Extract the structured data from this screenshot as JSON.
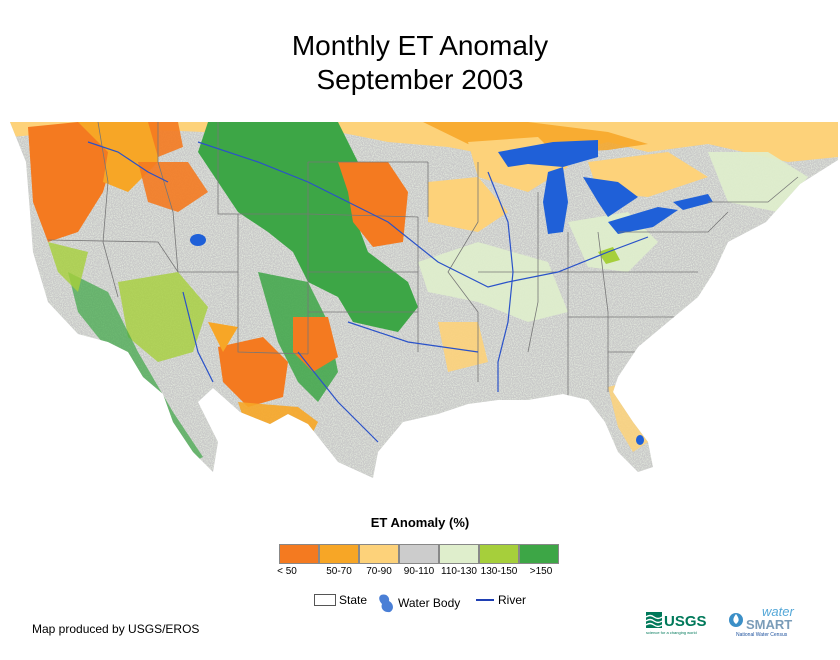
{
  "title": {
    "line1": "Monthly ET Anomaly",
    "line2": "September 2003"
  },
  "map": {
    "region": "conterminous-us",
    "water_color": "#1f60d8",
    "river_color": "#2a52c9",
    "land_base_color": "#c8c8c8"
  },
  "legend": {
    "title": "ET Anomaly (%)",
    "classes": [
      {
        "label": "< 50",
        "color": "#f47a20"
      },
      {
        "label": "50-70",
        "color": "#f7a626"
      },
      {
        "label": "70-90",
        "color": "#fdd27a"
      },
      {
        "label": "90-110",
        "color": "#cccccc"
      },
      {
        "label": "110-130",
        "color": "#dfeecc"
      },
      {
        "label": "130-150",
        "color": "#a6cf3b"
      },
      {
        "label": ">150",
        "color": "#3da646"
      }
    ],
    "keys": {
      "state": "State",
      "water_body": "Water Body",
      "river": "River"
    }
  },
  "credit": "Map produced by USGS/EROS",
  "logos": {
    "usgs": {
      "name": "USGS",
      "tagline": "science for a changing world"
    },
    "watersmart": {
      "word1": "water",
      "word2": "SMART",
      "tagline": "National Water Census"
    }
  }
}
